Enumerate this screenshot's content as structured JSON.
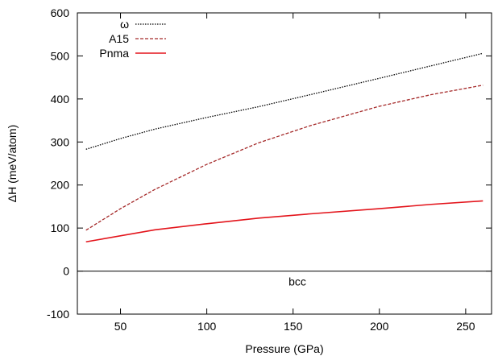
{
  "chart_data": {
    "type": "line",
    "xlabel": "Pressure (GPa)",
    "ylabel": "ΔH (meV/atom)",
    "xlim": [
      25,
      265
    ],
    "ylim": [
      -100,
      600
    ],
    "xticks": [
      50,
      100,
      150,
      200,
      250
    ],
    "yticks": [
      -100,
      0,
      100,
      200,
      300,
      400,
      500,
      600
    ],
    "grid": false,
    "legend_position": "top-left",
    "reference_line": {
      "y": 0,
      "label": "bcc"
    },
    "series": [
      {
        "name": "ω",
        "style": "dotted",
        "color": "#000000",
        "x": [
          30,
          50,
          70,
          100,
          130,
          160,
          200,
          230,
          260
        ],
        "y": [
          283,
          308,
          330,
          357,
          382,
          410,
          448,
          477,
          506
        ]
      },
      {
        "name": "A15",
        "style": "dashed",
        "color": "#a52a2a",
        "x": [
          30,
          50,
          70,
          100,
          130,
          160,
          200,
          230,
          260
        ],
        "y": [
          95,
          145,
          190,
          248,
          298,
          338,
          383,
          410,
          432
        ]
      },
      {
        "name": "Pnma",
        "style": "solid",
        "color": "#e3141b",
        "x": [
          30,
          70,
          100,
          130,
          160,
          200,
          230,
          260
        ],
        "y": [
          68,
          96,
          110,
          123,
          133,
          145,
          155,
          163
        ]
      }
    ]
  }
}
